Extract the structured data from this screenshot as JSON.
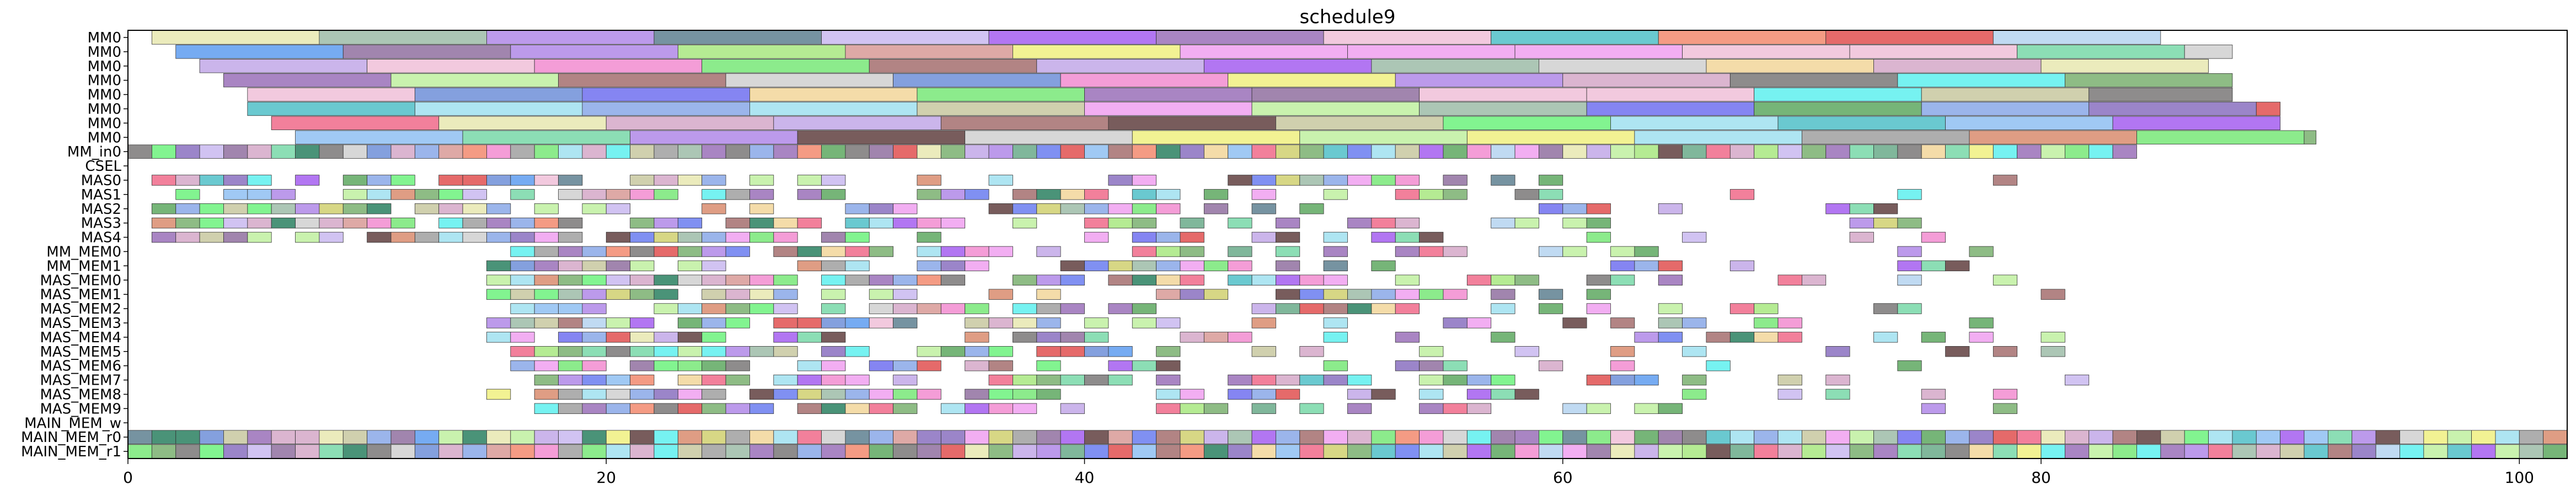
{
  "chart_data": {
    "type": "gantt",
    "title": "schedule9",
    "xlabel": "",
    "ylabel": "",
    "xlim": [
      0,
      102
    ],
    "x_ticks": [
      0,
      20,
      40,
      60,
      80,
      100
    ],
    "x_tick_labels": [
      "0",
      "20",
      "40",
      "60",
      "80",
      "100"
    ],
    "grid": false,
    "rows": [
      "MM0",
      "MM0",
      "MM0",
      "MM0",
      "MM0",
      "MM0",
      "MM0",
      "MM0",
      "MM_in0",
      "CSEL",
      "MAS0",
      "MAS1",
      "MAS2",
      "MAS3",
      "MAS4",
      "MM_MEM0",
      "MM_MEM1",
      "MAS_MEM0",
      "MAS_MEM1",
      "MAS_MEM2",
      "MAS_MEM3",
      "MAS_MEM4",
      "MAS_MEM5",
      "MAS_MEM6",
      "MAS_MEM7",
      "MAS_MEM8",
      "MAS_MEM9",
      "MAIN_MEM_w",
      "MAIN_MEM_r0",
      "MAIN_MEM_r1"
    ],
    "row_start_x": [
      1.0,
      2.0,
      3.0,
      4.0,
      5.0,
      5.0,
      6.0,
      7.0,
      0,
      null,
      1.0,
      1.0,
      1.0,
      1.0,
      1.0,
      15.0,
      15.0,
      15.0,
      15.0,
      16.0,
      15.0,
      15.0,
      16.0,
      16.0,
      17.0,
      15.0,
      16.0,
      null,
      0,
      0
    ],
    "row_end_x": [
      85.0,
      88.0,
      87.0,
      88.0,
      88.0,
      90.0,
      90.0,
      91.5,
      84.0,
      null,
      79.0,
      79.0,
      79.0,
      79.0,
      78.0,
      78.0,
      78.0,
      82.5,
      82.5,
      81.0,
      82.0,
      82.5,
      81.0,
      78.0,
      82.0,
      81.0,
      78.5,
      null,
      102.0,
      102.0
    ],
    "mm_task_width": 7.0,
    "small_task_width": 1.0,
    "palette": [
      "#b5d4f0",
      "#6a7cf0",
      "#8fbff2",
      "#d98c6e",
      "#f0c0d8",
      "#8a8aa6",
      "#6aaa8a",
      "#c2a8e8",
      "#f28a6e",
      "#b088e8",
      "#f2d69a",
      "#6f8fd8",
      "#a45ef0",
      "#5e9cf0",
      "#8a70c0",
      "#d5a8c8",
      "#9dbca8",
      "#5ea860",
      "#6cf27c",
      "#5ef0ee",
      "#c9b8f0",
      "#a46e6e",
      "#78d8a8",
      "#d89a96",
      "#f0a0f0",
      "#7ab070",
      "#c8c8a0",
      "#f28cd0",
      "#8aa8e8",
      "#e8e8b0",
      "#9a70b8",
      "#5e8090",
      "#a0a0a0",
      "#7a7878",
      "#d0d070",
      "#f06a8a",
      "#78e878",
      "#a8e880",
      "#f0f080",
      "#9070a0",
      "#50c0c8",
      "#e05050",
      "#7070f0",
      "#2a8060",
      "#d0d0d0",
      "#604040",
      "#a0e0f0",
      "#c0f0a0"
    ]
  }
}
